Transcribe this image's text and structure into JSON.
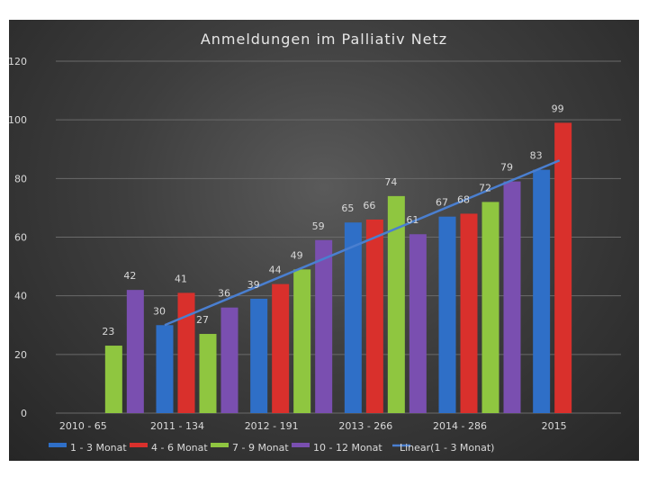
{
  "chart_data": {
    "type": "bar",
    "title": "Anmeldungen im Palliativ Netz",
    "categories": [
      "2010 - 65",
      "2011 - 134",
      "2012 - 191",
      "2013 - 266",
      "2014 - 286",
      "2015"
    ],
    "ylim": [
      0,
      120
    ],
    "yticks": [
      0,
      20,
      40,
      60,
      80,
      100,
      120
    ],
    "grid": true,
    "legend_position": "bottom",
    "series": [
      {
        "name": "1 - 3 Monat",
        "color": "#2f6fc7",
        "values": [
          null,
          30,
          39,
          65,
          67,
          83
        ]
      },
      {
        "name": "4 - 6 Monat",
        "color": "#d9302c",
        "values": [
          null,
          41,
          44,
          66,
          68,
          99
        ]
      },
      {
        "name": "7 - 9 Monat",
        "color": "#8fc640",
        "values": [
          23,
          27,
          49,
          74,
          72,
          null
        ]
      },
      {
        "name": "10 - 12 Monat",
        "color": "#7a4fb0",
        "values": [
          42,
          36,
          59,
          61,
          79,
          null
        ]
      }
    ],
    "trendline": {
      "name": "Linear(1 - 3 Monat)",
      "color": "#4a7fd0",
      "series": "1 - 3 Monat",
      "type": "linear"
    }
  }
}
